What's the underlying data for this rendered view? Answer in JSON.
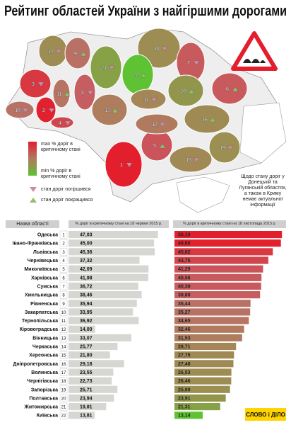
{
  "title": "Рейтинг областей України з найгіршими дорогами",
  "legend": {
    "max": "max % доріг в критичному стані",
    "min": "min % доріг в критичному стані",
    "worse": "стан доріг погіршився",
    "better": "стан доріг покращився",
    "gradient": [
      "#e31e2d",
      "#c06a6a",
      "#9a9050",
      "#5ec232"
    ]
  },
  "note": "Щодо стану доріг у Донецькій та Луганській областях, а також в Криму немає актуальної інформації",
  "logo": "СЛОВО і ДІЛО",
  "chart_data": {
    "type": "bar",
    "header": "Назва області",
    "categories": [
      "Одеська",
      "Івано-Франківська",
      "Львівська",
      "Чернівецька",
      "Миколаївська",
      "Харківська",
      "Сумська",
      "Хмельницька",
      "Рівненська",
      "Закарпатська",
      "Тернопільська",
      "Кіровоградська",
      "Вінницька",
      "Черкаська",
      "Херсонська",
      "Дніпропетровська",
      "Волинська",
      "Чернігівська",
      "Запорізька",
      "Полтавська",
      "Житомирська",
      "Київська"
    ],
    "ranks": [
      1,
      2,
      3,
      4,
      5,
      6,
      7,
      8,
      9,
      10,
      11,
      12,
      13,
      14,
      15,
      16,
      17,
      18,
      19,
      20,
      21,
      22
    ],
    "xlim": [
      0,
      52
    ],
    "series": [
      {
        "name": "% доріг в критичному стані на 18 червня 2015 р.",
        "color": "#d6d6d2",
        "values": [
          47.03,
          45.0,
          45.36,
          37.32,
          42.09,
          41.98,
          36.72,
          38.46,
          35.94,
          33.95,
          36.92,
          14.0,
          33.07,
          25.77,
          21.8,
          29.18,
          23.55,
          22.73,
          25.71,
          23.94,
          19.81,
          13.81
        ],
        "value_labels": [
          "47,03",
          "45,00",
          "45,36",
          "37,32",
          "42,09",
          "41,98",
          "36,72",
          "38,46",
          "35,94",
          "33,95",
          "36,92",
          "14,00",
          "33,07",
          "25,77",
          "21,80",
          "29,18",
          "23,55",
          "22,73",
          "25,71",
          "23,94",
          "19,81",
          "13,81"
        ]
      },
      {
        "name": "% доріг в критичному стані на 18 листопада 2015 р.",
        "color": "gradient",
        "values": [
          50.1,
          49.6,
          45.82,
          43.75,
          41.29,
          40.56,
          40.39,
          39.89,
          35.44,
          35.27,
          34.65,
          32.46,
          31.53,
          28.71,
          27.75,
          27.48,
          26.53,
          26.46,
          25.89,
          23.91,
          21.31,
          13.14
        ],
        "value_labels": [
          "50,10",
          "49,60",
          "45,82",
          "43,75",
          "41,29",
          "40,56",
          "40,39",
          "39,89",
          "35,44",
          "35,27",
          "34,65",
          "32,46",
          "31,53",
          "28,71",
          "27,75",
          "27,48",
          "26,53",
          "26,46",
          "25,89",
          "23,91",
          "21,31",
          "13,14"
        ]
      }
    ]
  }
}
